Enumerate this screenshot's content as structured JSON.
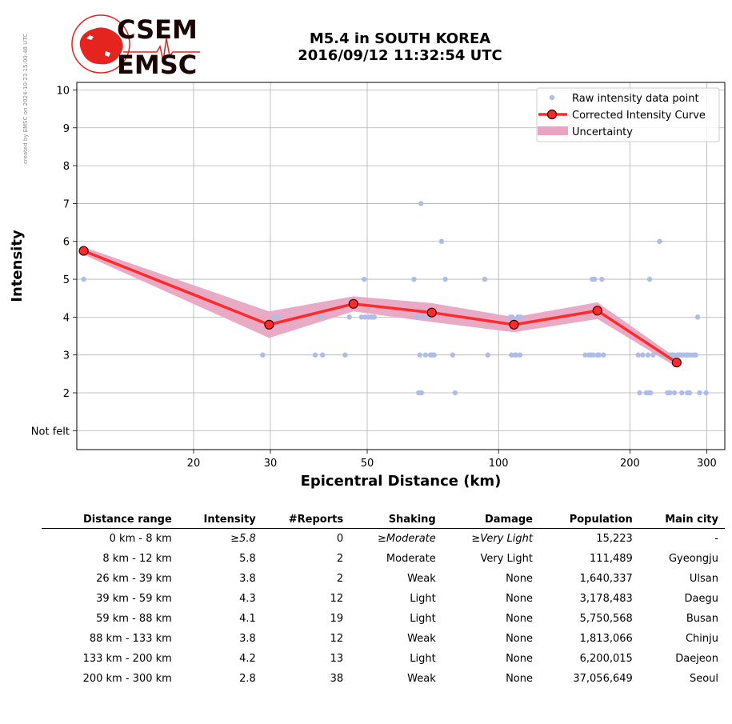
{
  "side_note": "created by EMSC on 2024-10-23 15:00:48 UTC",
  "logo": {
    "text_top": "CSEM",
    "text_bottom": "EMSC",
    "color": "#e52420"
  },
  "title": {
    "line1": "M5.4 in SOUTH KOREA",
    "line2": "2016/09/12 11:32:54 UTC"
  },
  "colors": {
    "raw": "#aebce8",
    "curve": "#ff2a2a",
    "marker_edge": "#3a0000",
    "band": "#e8a5c2",
    "grid": "#b0b0b0"
  },
  "chart_data": {
    "type": "scatter",
    "xlabel": "Epicentral Distance (km)",
    "ylabel": "Intensity",
    "x_scale": "log",
    "xlim": [
      10.8,
      330
    ],
    "ylim": [
      0.5,
      10.2
    ],
    "grid": true,
    "legend_position": "top-right",
    "x_ticks": [
      20,
      30,
      50,
      100,
      200,
      300
    ],
    "y_ticks": [
      {
        "value": 1,
        "label": "Not felt"
      },
      {
        "value": 2,
        "label": "2"
      },
      {
        "value": 3,
        "label": "3"
      },
      {
        "value": 4,
        "label": "4"
      },
      {
        "value": 5,
        "label": "5"
      },
      {
        "value": 6,
        "label": "6"
      },
      {
        "value": 7,
        "label": "7"
      },
      {
        "value": 8,
        "label": "8"
      },
      {
        "value": 9,
        "label": "9"
      },
      {
        "value": 10,
        "label": "10"
      }
    ],
    "legend": [
      "Raw intensity data point",
      "Corrected Intensity Curve",
      "Uncertainty"
    ],
    "raw_points": [
      [
        11.2,
        5
      ],
      [
        28.8,
        3
      ],
      [
        30.5,
        4
      ],
      [
        31.2,
        4
      ],
      [
        38,
        3
      ],
      [
        39.2,
        4
      ],
      [
        39.5,
        3
      ],
      [
        44.5,
        3
      ],
      [
        45.5,
        4
      ],
      [
        48.5,
        4
      ],
      [
        49.2,
        5
      ],
      [
        49.4,
        4
      ],
      [
        50.4,
        4
      ],
      [
        51.2,
        4
      ],
      [
        51.9,
        4
      ],
      [
        64,
        5
      ],
      [
        64.8,
        4
      ],
      [
        65.6,
        2
      ],
      [
        66,
        3
      ],
      [
        66.4,
        7
      ],
      [
        66.6,
        2
      ],
      [
        67.2,
        4
      ],
      [
        68,
        3
      ],
      [
        69.3,
        4
      ],
      [
        69.8,
        3
      ],
      [
        70.4,
        3
      ],
      [
        71.2,
        3
      ],
      [
        74,
        6
      ],
      [
        75.5,
        5
      ],
      [
        78.5,
        3
      ],
      [
        79.5,
        2
      ],
      [
        93,
        5
      ],
      [
        94.5,
        3
      ],
      [
        106.5,
        4
      ],
      [
        107,
        3
      ],
      [
        107.5,
        4
      ],
      [
        109,
        3
      ],
      [
        109.7,
        3
      ],
      [
        110.8,
        4
      ],
      [
        111.5,
        4
      ],
      [
        112,
        3
      ],
      [
        112.5,
        4
      ],
      [
        158,
        3
      ],
      [
        161,
        3
      ],
      [
        163,
        3
      ],
      [
        164,
        5
      ],
      [
        165,
        3
      ],
      [
        166,
        5
      ],
      [
        168.5,
        3
      ],
      [
        170,
        3
      ],
      [
        172.5,
        5
      ],
      [
        174,
        3
      ],
      [
        209,
        3
      ],
      [
        210.5,
        2
      ],
      [
        214,
        3
      ],
      [
        218,
        2
      ],
      [
        220,
        3
      ],
      [
        221,
        2
      ],
      [
        222,
        5
      ],
      [
        223,
        2
      ],
      [
        226,
        3
      ],
      [
        234,
        6
      ],
      [
        236,
        3
      ],
      [
        239,
        3
      ],
      [
        244,
        2
      ],
      [
        245.5,
        3
      ],
      [
        247,
        2
      ],
      [
        248,
        3
      ],
      [
        250,
        3
      ],
      [
        252,
        3
      ],
      [
        253,
        2
      ],
      [
        257,
        3
      ],
      [
        260,
        3
      ],
      [
        262,
        3
      ],
      [
        263,
        2
      ],
      [
        265,
        3
      ],
      [
        268,
        3
      ],
      [
        270,
        3
      ],
      [
        271,
        2
      ],
      [
        272,
        3
      ],
      [
        274,
        2
      ],
      [
        276,
        3
      ],
      [
        280,
        3
      ],
      [
        283,
        3
      ],
      [
        286,
        4
      ],
      [
        289,
        2
      ],
      [
        299,
        2
      ]
    ],
    "curve": [
      [
        11.2,
        5.75
      ],
      [
        29.8,
        3.8
      ],
      [
        46.5,
        4.35
      ],
      [
        70.3,
        4.12
      ],
      [
        108.5,
        3.8
      ],
      [
        168.5,
        4.17
      ],
      [
        256,
        2.8
      ]
    ],
    "uncertainty": [
      [
        0.1,
        0.1
      ],
      [
        0.35,
        0.35
      ],
      [
        0.2,
        0.2
      ],
      [
        0.25,
        0.25
      ],
      [
        0.2,
        0.2
      ],
      [
        0.22,
        0.22
      ],
      [
        0.12,
        0.12
      ]
    ]
  },
  "table": {
    "headers": [
      "Distance range",
      "Intensity",
      "#Reports",
      "Shaking",
      "Damage",
      "Population",
      "Main city"
    ],
    "rows": [
      {
        "range": "0 km -    8 km",
        "intensity": "≥5.8",
        "reports": "0",
        "shaking": "≥Moderate",
        "damage": "≥Very Light",
        "population": "15,223",
        "city": "-"
      },
      {
        "range": "8 km -   12 km",
        "intensity": "5.8",
        "reports": "2",
        "shaking": "Moderate",
        "damage": "Very Light",
        "population": "111,489",
        "city": "Gyeongju"
      },
      {
        "range": "26 km -   39 km",
        "intensity": "3.8",
        "reports": "2",
        "shaking": "Weak",
        "damage": "None",
        "population": "1,640,337",
        "city": "Ulsan"
      },
      {
        "range": "39 km -   59 km",
        "intensity": "4.3",
        "reports": "12",
        "shaking": "Light",
        "damage": "None",
        "population": "3,178,483",
        "city": "Daegu"
      },
      {
        "range": "59 km -   88 km",
        "intensity": "4.1",
        "reports": "19",
        "shaking": "Light",
        "damage": "None",
        "population": "5,750,568",
        "city": "Busan"
      },
      {
        "range": "88 km -  133 km",
        "intensity": "3.8",
        "reports": "12",
        "shaking": "Weak",
        "damage": "None",
        "population": "1,813,066",
        "city": "Chinju"
      },
      {
        "range": "133 km -  200 km",
        "intensity": "4.2",
        "reports": "13",
        "shaking": "Light",
        "damage": "None",
        "population": "6,200,015",
        "city": "Daejeon"
      },
      {
        "range": "200 km -  300 km",
        "intensity": "2.8",
        "reports": "38",
        "shaking": "Weak",
        "damage": "None",
        "population": "37,056,649",
        "city": "Seoul"
      }
    ]
  }
}
